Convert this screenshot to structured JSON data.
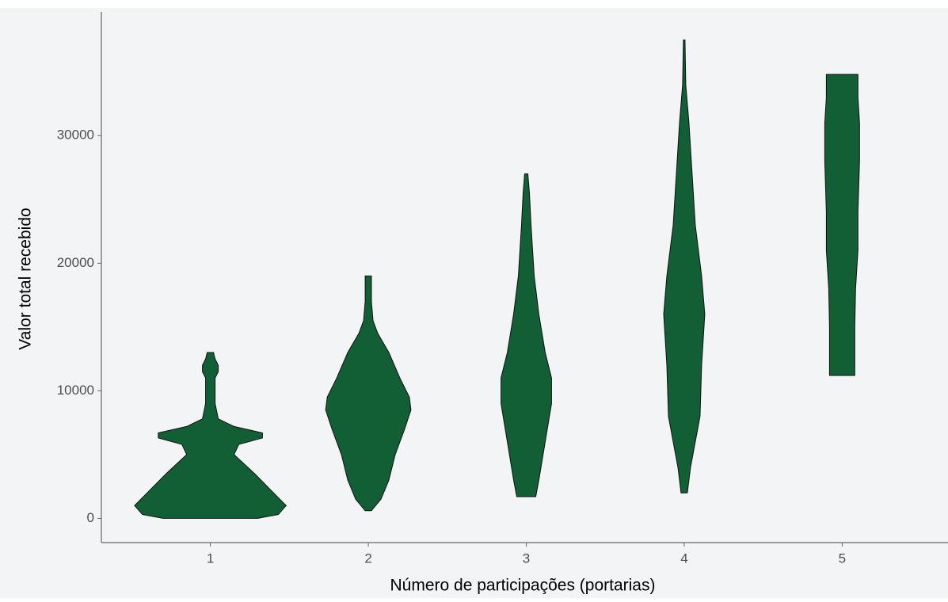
{
  "chart_data": {
    "type": "violin",
    "x_label": "Número de participações (portarias)",
    "y_label": "Valor total recebido",
    "categories": [
      "1",
      "2",
      "3",
      "4",
      "5"
    ],
    "xlim": [
      0.31,
      5.67
    ],
    "ylim": [
      -1900,
      39700
    ],
    "yticks": [
      0,
      10000,
      20000,
      30000
    ],
    "color": "#125f36",
    "violins": [
      {
        "y": [
          0,
          300,
          1000,
          2000,
          3500,
          5000,
          5800,
          6300,
          6700,
          7200,
          7800,
          9000,
          11000,
          11500,
          12000,
          12500,
          13000
        ],
        "width": [
          0.3,
          0.43,
          0.48,
          0.4,
          0.28,
          0.15,
          0.18,
          0.33,
          0.33,
          0.15,
          0.05,
          0.03,
          0.03,
          0.05,
          0.05,
          0.03,
          0.02
        ]
      },
      {
        "y": [
          600,
          1500,
          3000,
          5000,
          7000,
          8500,
          9500,
          11000,
          13000,
          14500,
          15500,
          17000,
          19000
        ],
        "width": [
          0.02,
          0.08,
          0.13,
          0.17,
          0.23,
          0.27,
          0.26,
          0.2,
          0.13,
          0.06,
          0.03,
          0.02,
          0.02
        ]
      },
      {
        "y": [
          1700,
          3000,
          6000,
          9000,
          11000,
          13000,
          16000,
          19000,
          23000,
          25500,
          27000
        ],
        "width": [
          0.06,
          0.08,
          0.12,
          0.16,
          0.16,
          0.12,
          0.08,
          0.05,
          0.03,
          0.02,
          0.01
        ]
      },
      {
        "y": [
          2000,
          4000,
          8000,
          12000,
          16000,
          19000,
          23000,
          27000,
          31000,
          34000,
          37500
        ],
        "width": [
          0.02,
          0.04,
          0.1,
          0.11,
          0.13,
          0.11,
          0.07,
          0.05,
          0.03,
          0.01,
          0.005
        ]
      },
      {
        "y": [
          11200,
          15000,
          18000,
          21000,
          24000,
          28000,
          31000,
          33000,
          34800
        ],
        "width": [
          0.08,
          0.08,
          0.085,
          0.1,
          0.1,
          0.11,
          0.11,
          0.1,
          0.1
        ]
      }
    ]
  }
}
